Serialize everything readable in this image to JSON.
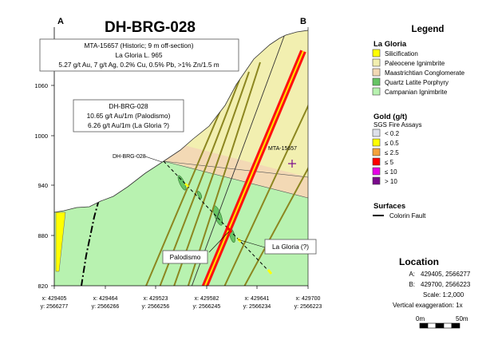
{
  "section": {
    "title": "DH-BRG-028",
    "corner_a": "A",
    "corner_b": "B"
  },
  "elevation_ticks": [
    "1060",
    "1000",
    "940",
    "880",
    "820"
  ],
  "easting_ticks": [
    {
      "x": "x: 429405",
      "y": "y: 2566277"
    },
    {
      "x": "x: 429464",
      "y": "y: 2566266"
    },
    {
      "x": "x: 429523",
      "y": "y: 2566256"
    },
    {
      "x": "x: 429582",
      "y": "y: 2566245"
    },
    {
      "x": "x: 429641",
      "y": "y: 2566234"
    },
    {
      "x": "x: 429700",
      "y": "y: 2566223"
    }
  ],
  "callouts": {
    "mta": [
      "MTA-15657 (Historic; 9 m off-section)",
      "La Gloria L. 965",
      "5.27 g/t Au, 7 g/t Ag, 0.2% Cu, 0.5% Pb, >1% Zn/1.5 m"
    ],
    "dh": [
      "DH-BRG-028",
      "10.65 g/t Au/1m (Palodismo)",
      "6.26 g/t Au/1m (La Gloria ?)"
    ],
    "palodismo": "Palodismo",
    "la_gloria": "La Gloria (?)",
    "drillhole_label": "DH-BRG-028",
    "mta_label": "MTA-15657"
  },
  "legend": {
    "title": "Legend",
    "geology_title": "La Gloria",
    "units": [
      {
        "label": "Silicification",
        "color": "#ffff00"
      },
      {
        "label": "Paleocene Ignimbrite",
        "color": "#f2efb0"
      },
      {
        "label": "Maastrichtian Conglomerate",
        "color": "#f3d9b5"
      },
      {
        "label": "Quartz Latite Porphyry",
        "color": "#66c464"
      },
      {
        "label": "Campanian Ignimbrite",
        "color": "#b8f2b0"
      }
    ],
    "gold_title": "Gold (g/t)",
    "gold_sub": "SGS Fire Assays",
    "gold_classes": [
      {
        "label": "< 0.2",
        "color": "#dde0ea"
      },
      {
        "label": "≤ 0.5",
        "color": "#ffff00"
      },
      {
        "label": "≤ 2.5",
        "color": "#f4a23a"
      },
      {
        "label": "≤ 5",
        "color": "#ff0000"
      },
      {
        "label": "≤ 10",
        "color": "#e600e6"
      },
      {
        "label": "> 10",
        "color": "#7a0a8c"
      }
    ],
    "surfaces_title": "Surfaces",
    "fault_label": "Colorin Fault"
  },
  "location": {
    "title": "Location",
    "a_key": "A:",
    "a_val": "429405, 2566277",
    "b_key": "B:",
    "b_val": "429700, 2566223",
    "scale": "Scale: 1:2,000",
    "vex": "Vertical exaggeration: 1x",
    "bar_start": "0m",
    "bar_end": "50m"
  }
}
